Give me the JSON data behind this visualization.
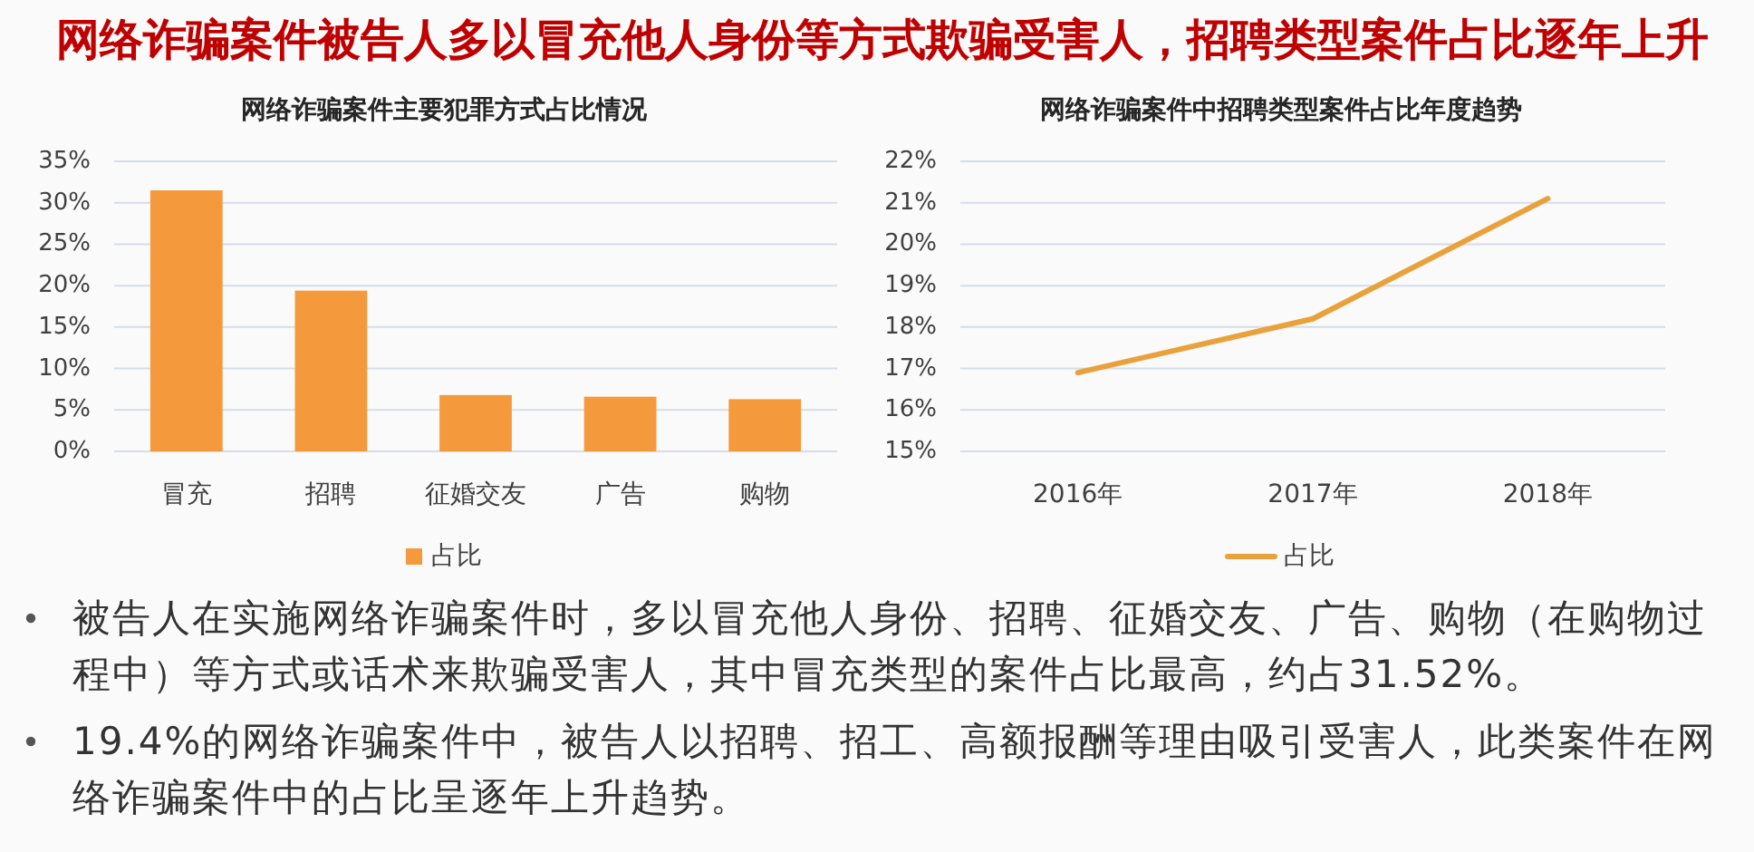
{
  "chart_data": [
    {
      "type": "other",
      "title": "网络诈骗案件被告人多以冒充他人身份等方式欺骗受害人，招聘类型案件占比逐年上升"
    },
    {
      "type": "bar",
      "title": "网络诈骗案件主要犯罪方式占比情况",
      "categories": [
        "冒充",
        "招聘",
        "征婚交友",
        "广告",
        "购物"
      ],
      "series": [
        {
          "name": "占比",
          "color": "#f59a3c",
          "values": [
            31.5,
            19.4,
            6.8,
            6.6,
            6.3
          ]
        }
      ],
      "ylim": [
        0,
        35
      ],
      "yticks": [
        {
          "value": 0,
          "label": "0%"
        },
        {
          "value": 5,
          "label": "5%"
        },
        {
          "value": 10,
          "label": "10%"
        },
        {
          "value": 15,
          "label": "15%"
        },
        {
          "value": 20,
          "label": "20%"
        },
        {
          "value": 25,
          "label": "25%"
        },
        {
          "value": 30,
          "label": "30%"
        },
        {
          "value": 35,
          "label": "35%"
        }
      ],
      "grid": "y",
      "legend": "bottom"
    },
    {
      "type": "line",
      "title": "网络诈骗案件中招聘类型案件占比年度趋势",
      "categories": [
        "2016年",
        "2017年",
        "2018年"
      ],
      "series": [
        {
          "name": "占比",
          "color": "#e9a13c",
          "values": [
            16.9,
            18.2,
            21.1
          ]
        }
      ],
      "ylim": [
        15,
        22
      ],
      "yticks": [
        {
          "value": 15,
          "label": "15%"
        },
        {
          "value": 16,
          "label": "16%"
        },
        {
          "value": 17,
          "label": "17%"
        },
        {
          "value": 18,
          "label": "18%"
        },
        {
          "value": 19,
          "label": "19%"
        },
        {
          "value": 20,
          "label": "20%"
        },
        {
          "value": 21,
          "label": "21%"
        },
        {
          "value": 22,
          "label": "22%"
        }
      ],
      "grid": "y",
      "legend": "bottom"
    },
    {
      "type": "other",
      "annotations": [
        "被告人在实施网络诈骗案件时，多以冒充他人身份、招聘、征婚交友、广告、购物（在购物过程中）等方式或话术来欺骗受害人，其中冒充类型的案件占比最高，约占31.52%。",
        "19.4%的网络诈骗案件中，被告人以招聘、招工、高额报酬等理由吸引受害人，此类案件在网络诈骗案件中的占比呈逐年上升趋势。"
      ]
    }
  ]
}
